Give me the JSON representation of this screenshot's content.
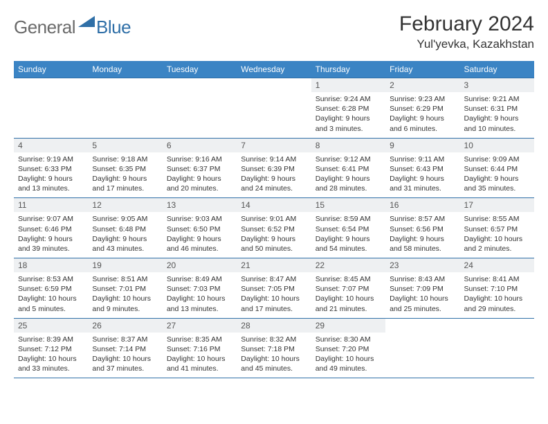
{
  "logo": {
    "text1": "General",
    "text2": "Blue"
  },
  "title": "February 2024",
  "location": "Yul'yevka, Kazakhstan",
  "colors": {
    "headerBg": "#3b84c4",
    "border": "#2f6fa7",
    "dayBg": "#eef0f2"
  },
  "dayHeaders": [
    "Sunday",
    "Monday",
    "Tuesday",
    "Wednesday",
    "Thursday",
    "Friday",
    "Saturday"
  ],
  "weeks": [
    [
      null,
      null,
      null,
      null,
      {
        "n": "1",
        "sr": "Sunrise: 9:24 AM",
        "ss": "Sunset: 6:28 PM",
        "dl": "Daylight: 9 hours and 3 minutes."
      },
      {
        "n": "2",
        "sr": "Sunrise: 9:23 AM",
        "ss": "Sunset: 6:29 PM",
        "dl": "Daylight: 9 hours and 6 minutes."
      },
      {
        "n": "3",
        "sr": "Sunrise: 9:21 AM",
        "ss": "Sunset: 6:31 PM",
        "dl": "Daylight: 9 hours and 10 minutes."
      }
    ],
    [
      {
        "n": "4",
        "sr": "Sunrise: 9:19 AM",
        "ss": "Sunset: 6:33 PM",
        "dl": "Daylight: 9 hours and 13 minutes."
      },
      {
        "n": "5",
        "sr": "Sunrise: 9:18 AM",
        "ss": "Sunset: 6:35 PM",
        "dl": "Daylight: 9 hours and 17 minutes."
      },
      {
        "n": "6",
        "sr": "Sunrise: 9:16 AM",
        "ss": "Sunset: 6:37 PM",
        "dl": "Daylight: 9 hours and 20 minutes."
      },
      {
        "n": "7",
        "sr": "Sunrise: 9:14 AM",
        "ss": "Sunset: 6:39 PM",
        "dl": "Daylight: 9 hours and 24 minutes."
      },
      {
        "n": "8",
        "sr": "Sunrise: 9:12 AM",
        "ss": "Sunset: 6:41 PM",
        "dl": "Daylight: 9 hours and 28 minutes."
      },
      {
        "n": "9",
        "sr": "Sunrise: 9:11 AM",
        "ss": "Sunset: 6:43 PM",
        "dl": "Daylight: 9 hours and 31 minutes."
      },
      {
        "n": "10",
        "sr": "Sunrise: 9:09 AM",
        "ss": "Sunset: 6:44 PM",
        "dl": "Daylight: 9 hours and 35 minutes."
      }
    ],
    [
      {
        "n": "11",
        "sr": "Sunrise: 9:07 AM",
        "ss": "Sunset: 6:46 PM",
        "dl": "Daylight: 9 hours and 39 minutes."
      },
      {
        "n": "12",
        "sr": "Sunrise: 9:05 AM",
        "ss": "Sunset: 6:48 PM",
        "dl": "Daylight: 9 hours and 43 minutes."
      },
      {
        "n": "13",
        "sr": "Sunrise: 9:03 AM",
        "ss": "Sunset: 6:50 PM",
        "dl": "Daylight: 9 hours and 46 minutes."
      },
      {
        "n": "14",
        "sr": "Sunrise: 9:01 AM",
        "ss": "Sunset: 6:52 PM",
        "dl": "Daylight: 9 hours and 50 minutes."
      },
      {
        "n": "15",
        "sr": "Sunrise: 8:59 AM",
        "ss": "Sunset: 6:54 PM",
        "dl": "Daylight: 9 hours and 54 minutes."
      },
      {
        "n": "16",
        "sr": "Sunrise: 8:57 AM",
        "ss": "Sunset: 6:56 PM",
        "dl": "Daylight: 9 hours and 58 minutes."
      },
      {
        "n": "17",
        "sr": "Sunrise: 8:55 AM",
        "ss": "Sunset: 6:57 PM",
        "dl": "Daylight: 10 hours and 2 minutes."
      }
    ],
    [
      {
        "n": "18",
        "sr": "Sunrise: 8:53 AM",
        "ss": "Sunset: 6:59 PM",
        "dl": "Daylight: 10 hours and 5 minutes."
      },
      {
        "n": "19",
        "sr": "Sunrise: 8:51 AM",
        "ss": "Sunset: 7:01 PM",
        "dl": "Daylight: 10 hours and 9 minutes."
      },
      {
        "n": "20",
        "sr": "Sunrise: 8:49 AM",
        "ss": "Sunset: 7:03 PM",
        "dl": "Daylight: 10 hours and 13 minutes."
      },
      {
        "n": "21",
        "sr": "Sunrise: 8:47 AM",
        "ss": "Sunset: 7:05 PM",
        "dl": "Daylight: 10 hours and 17 minutes."
      },
      {
        "n": "22",
        "sr": "Sunrise: 8:45 AM",
        "ss": "Sunset: 7:07 PM",
        "dl": "Daylight: 10 hours and 21 minutes."
      },
      {
        "n": "23",
        "sr": "Sunrise: 8:43 AM",
        "ss": "Sunset: 7:09 PM",
        "dl": "Daylight: 10 hours and 25 minutes."
      },
      {
        "n": "24",
        "sr": "Sunrise: 8:41 AM",
        "ss": "Sunset: 7:10 PM",
        "dl": "Daylight: 10 hours and 29 minutes."
      }
    ],
    [
      {
        "n": "25",
        "sr": "Sunrise: 8:39 AM",
        "ss": "Sunset: 7:12 PM",
        "dl": "Daylight: 10 hours and 33 minutes."
      },
      {
        "n": "26",
        "sr": "Sunrise: 8:37 AM",
        "ss": "Sunset: 7:14 PM",
        "dl": "Daylight: 10 hours and 37 minutes."
      },
      {
        "n": "27",
        "sr": "Sunrise: 8:35 AM",
        "ss": "Sunset: 7:16 PM",
        "dl": "Daylight: 10 hours and 41 minutes."
      },
      {
        "n": "28",
        "sr": "Sunrise: 8:32 AM",
        "ss": "Sunset: 7:18 PM",
        "dl": "Daylight: 10 hours and 45 minutes."
      },
      {
        "n": "29",
        "sr": "Sunrise: 8:30 AM",
        "ss": "Sunset: 7:20 PM",
        "dl": "Daylight: 10 hours and 49 minutes."
      },
      null,
      null
    ]
  ]
}
